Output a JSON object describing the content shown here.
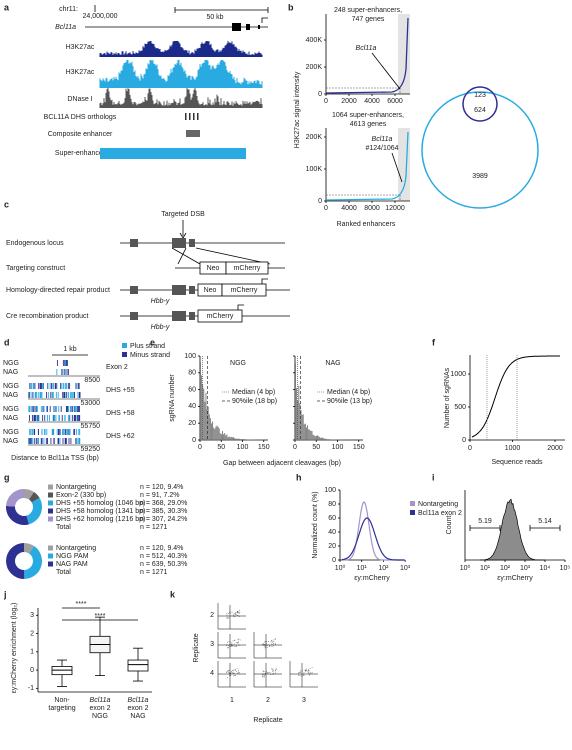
{
  "a": {
    "label": "a",
    "chrom": "chr11:",
    "position": "24,000,000",
    "scale": "50 kb",
    "gene": "Bcl11a",
    "tracks": [
      "H3K27ac",
      "H3K27ac",
      "DNase I",
      "BCL11A DHS orthologs",
      "Composite enhancer",
      "Super-enhancer"
    ]
  },
  "b": {
    "label": "b",
    "ylabel": "H3K27ac signal intensity",
    "xlabel": "Ranked enhancers",
    "top": {
      "note": [
        "248 super-enhancers,",
        "747 genes"
      ],
      "gene": "Bcl11a",
      "yticks": [
        "0",
        "200K",
        "400K"
      ],
      "xticks": [
        "0",
        "2000",
        "4000",
        "6000"
      ]
    },
    "bottom": {
      "note": [
        "1064 super-enhancers,",
        "4613 genes"
      ],
      "gene": "Bcl11a",
      "rank": "#124/1064",
      "yticks": [
        "0",
        "100K",
        "200K"
      ],
      "xticks": [
        "0",
        "4000",
        "8000",
        "12000"
      ]
    },
    "venn": {
      "small_only": "123",
      "overlap": "624",
      "large_only": "3989"
    }
  },
  "c": {
    "label": "c",
    "dsb": "Targeted DSB",
    "rows": [
      "Endogenous locus",
      "Targeting construct",
      "Homology-directed repair product",
      "Cre recombination product"
    ],
    "gene": "Hbb-y",
    "neo": "Neo",
    "mcherry": "mCherry"
  },
  "d": {
    "label": "d",
    "scale": "1 kb",
    "legend": [
      "Plus strand",
      "Minus strand"
    ],
    "xlabel": "Distance to Bcl11a TSS (bp)",
    "regions": [
      {
        "rows": [
          "NGG",
          "NAG"
        ],
        "end": "8500",
        "name": "Exon 2"
      },
      {
        "rows": [
          "NGG",
          "NAG"
        ],
        "end": "53000",
        "name": "DHS +55"
      },
      {
        "rows": [
          "NGG",
          "NAG"
        ],
        "end": "55750",
        "name": "DHS +58"
      },
      {
        "rows": [
          "NGG",
          "NAG"
        ],
        "end": "59250",
        "name": "DHS +62"
      }
    ]
  },
  "e": {
    "label": "e",
    "ylabel": "sgRNA number",
    "yticks": [
      "0",
      "20",
      "40",
      "60",
      "80",
      "100"
    ],
    "xlabel": "Gap between adjacent cleavages (bp)",
    "plots": [
      {
        "title": "NGG",
        "xticks": [
          "0",
          "50",
          "100",
          "150"
        ],
        "legend": [
          "Median (4 bp)",
          "90%ile (18 bp)"
        ]
      },
      {
        "title": "NAG",
        "xticks": [
          "0",
          "50",
          "100",
          "150"
        ],
        "legend": [
          "Median (4 bp)",
          "90%ile (13 bp)"
        ]
      }
    ]
  },
  "f": {
    "label": "f",
    "ylabel": "Number of sgRNAs",
    "yticks": [
      "0",
      "500",
      "1000"
    ],
    "xticks": [
      "0",
      "1000",
      "2000"
    ],
    "xlabel": "Sequence reads"
  },
  "g": {
    "label": "g",
    "donuts": [
      {
        "items": [
          {
            "name": "Nontargeting",
            "n": "n = 120, 9.4%",
            "color": "#a0a0a0"
          },
          {
            "name": "Exon-2 (330 bp)",
            "n": "n = 91, 7.2%",
            "color": "#555555"
          },
          {
            "name": "DHS +55 homolog (1046 bp)",
            "n": "n = 368, 29.0%",
            "color": "#29abe2"
          },
          {
            "name": "DHS +58 homolog (1341 bp)",
            "n": "n = 385, 30.3%",
            "color": "#2e3192"
          },
          {
            "name": "DHS +62 homolog (1216 bp)",
            "n": "n = 307, 24.2%",
            "color": "#a394cc"
          }
        ],
        "total": {
          "name": "Total",
          "n": "n = 1271"
        }
      },
      {
        "items": [
          {
            "name": "Nontargeting",
            "n": "n = 120, 9.4%",
            "color": "#a0a0a0"
          },
          {
            "name": "NGG PAM",
            "n": "n = 512, 40.3%",
            "color": "#29abe2"
          },
          {
            "name": "NAG PAM",
            "n": "n = 639, 50.3%",
            "color": "#2e3192"
          }
        ],
        "total": {
          "name": "Total",
          "n": "n = 1271"
        }
      }
    ]
  },
  "h": {
    "label": "h",
    "ylabel": "Normalized count (%)",
    "yticks": [
      "0",
      "20",
      "40",
      "60",
      "80",
      "100"
    ],
    "xticks": [
      "10⁰",
      "10¹",
      "10²",
      "10³"
    ],
    "xlabel": "εy:mCherry",
    "legend": [
      {
        "name": "Nontargeting",
        "color": "#a394cc"
      },
      {
        "name": "Bcl11a exon 2",
        "color": "#2e3192"
      }
    ]
  },
  "i": {
    "label": "i",
    "ylabel": "Count",
    "gates": [
      "5.19",
      "5.14"
    ],
    "xticks": [
      "10⁰",
      "10¹",
      "10²",
      "10³",
      "10⁴",
      "10⁵"
    ],
    "xlabel": "εy:mCherry"
  },
  "j": {
    "label": "j",
    "ylabel": "εy:mCherry enrichment (log₂)",
    "ylim": [
      -1.2,
      3.4
    ],
    "yticks": [
      -1,
      0,
      1,
      2,
      3
    ],
    "stars": [
      "****",
      "****"
    ],
    "categories": [
      [
        "Non-",
        "targeting"
      ],
      [
        "Bcl11a",
        "exon 2",
        "NGG"
      ],
      [
        "Bcl11a",
        "exon 2",
        "NAG"
      ]
    ],
    "boxes": [
      {
        "min": -0.9,
        "q1": -0.25,
        "median": 0,
        "q3": 0.2,
        "max": 0.55
      },
      {
        "min": -0.3,
        "q1": 0.95,
        "median": 1.4,
        "q3": 1.85,
        "max": 2.9
      },
      {
        "min": -0.6,
        "q1": -0.05,
        "median": 0.3,
        "q3": 0.55,
        "max": 1.2
      }
    ]
  },
  "k": {
    "label": "k",
    "ylabel": "Replicate",
    "xlabel": "Replicate",
    "rows": [
      "2",
      "3",
      "4"
    ],
    "cols": [
      "1",
      "2",
      "3"
    ]
  }
}
